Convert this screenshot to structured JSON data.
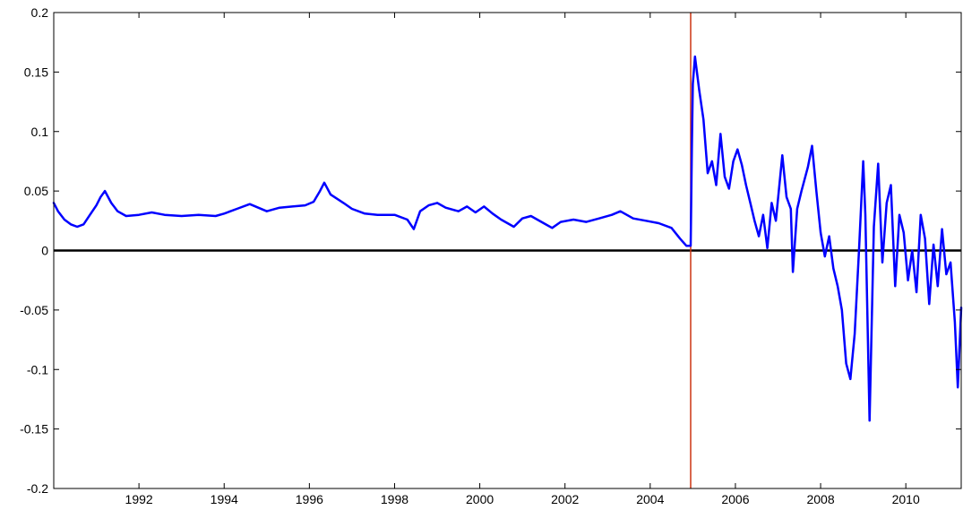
{
  "chart_data": {
    "type": "line",
    "title": "",
    "xlabel": "",
    "ylabel": "",
    "xlim": [
      1990.0,
      2011.3
    ],
    "ylim": [
      -0.2,
      0.2
    ],
    "xticks": [
      1992,
      1994,
      1996,
      1998,
      2000,
      2002,
      2004,
      2006,
      2008,
      2010
    ],
    "xtick_labels": [
      "1992",
      "1994",
      "1996",
      "1998",
      "2000",
      "2002",
      "2004",
      "2006",
      "2008",
      "2010"
    ],
    "yticks": [
      -0.2,
      -0.15,
      -0.1,
      -0.05,
      0,
      0.05,
      0.1,
      0.15,
      0.2
    ],
    "ytick_labels": [
      "-0.2",
      "-0.15",
      "-0.1",
      "-0.05",
      "0",
      "0.05",
      "0.1",
      "0.15",
      "0.2"
    ],
    "grid": false,
    "zero_line": {
      "y": 0,
      "color": "#000000"
    },
    "vertical_line": {
      "x": 2004.95,
      "color": "#cc3311"
    },
    "series": [
      {
        "color": "#0000ff",
        "points": [
          [
            1990.0,
            0.04
          ],
          [
            1990.1,
            0.033
          ],
          [
            1990.25,
            0.026
          ],
          [
            1990.4,
            0.022
          ],
          [
            1990.55,
            0.02
          ],
          [
            1990.7,
            0.022
          ],
          [
            1990.85,
            0.03
          ],
          [
            1991.0,
            0.038
          ],
          [
            1991.1,
            0.045
          ],
          [
            1991.2,
            0.05
          ],
          [
            1991.35,
            0.04
          ],
          [
            1991.5,
            0.033
          ],
          [
            1991.7,
            0.029
          ],
          [
            1992.0,
            0.03
          ],
          [
            1992.3,
            0.032
          ],
          [
            1992.6,
            0.03
          ],
          [
            1993.0,
            0.029
          ],
          [
            1993.4,
            0.03
          ],
          [
            1993.8,
            0.029
          ],
          [
            1994.0,
            0.031
          ],
          [
            1994.3,
            0.035
          ],
          [
            1994.6,
            0.039
          ],
          [
            1994.8,
            0.036
          ],
          [
            1995.0,
            0.033
          ],
          [
            1995.3,
            0.036
          ],
          [
            1995.6,
            0.037
          ],
          [
            1995.9,
            0.038
          ],
          [
            1996.1,
            0.041
          ],
          [
            1996.25,
            0.05
          ],
          [
            1996.35,
            0.057
          ],
          [
            1996.5,
            0.047
          ],
          [
            1996.8,
            0.04
          ],
          [
            1997.0,
            0.035
          ],
          [
            1997.3,
            0.031
          ],
          [
            1997.6,
            0.03
          ],
          [
            1998.0,
            0.03
          ],
          [
            1998.3,
            0.026
          ],
          [
            1998.45,
            0.018
          ],
          [
            1998.6,
            0.033
          ],
          [
            1998.8,
            0.038
          ],
          [
            1999.0,
            0.04
          ],
          [
            1999.2,
            0.036
          ],
          [
            1999.5,
            0.033
          ],
          [
            1999.7,
            0.037
          ],
          [
            1999.9,
            0.032
          ],
          [
            2000.1,
            0.037
          ],
          [
            2000.3,
            0.031
          ],
          [
            2000.5,
            0.026
          ],
          [
            2000.8,
            0.02
          ],
          [
            2001.0,
            0.027
          ],
          [
            2001.2,
            0.029
          ],
          [
            2001.5,
            0.023
          ],
          [
            2001.7,
            0.019
          ],
          [
            2001.9,
            0.024
          ],
          [
            2002.2,
            0.026
          ],
          [
            2002.5,
            0.024
          ],
          [
            2002.8,
            0.027
          ],
          [
            2003.1,
            0.03
          ],
          [
            2003.3,
            0.033
          ],
          [
            2003.6,
            0.027
          ],
          [
            2003.9,
            0.025
          ],
          [
            2004.2,
            0.023
          ],
          [
            2004.5,
            0.019
          ],
          [
            2004.7,
            0.01
          ],
          [
            2004.85,
            0.004
          ],
          [
            2004.95,
            0.004
          ],
          [
            2004.98,
            0.09
          ],
          [
            2005.0,
            0.14
          ],
          [
            2005.05,
            0.163
          ],
          [
            2005.15,
            0.135
          ],
          [
            2005.25,
            0.11
          ],
          [
            2005.35,
            0.065
          ],
          [
            2005.45,
            0.075
          ],
          [
            2005.55,
            0.055
          ],
          [
            2005.65,
            0.098
          ],
          [
            2005.75,
            0.062
          ],
          [
            2005.85,
            0.052
          ],
          [
            2005.95,
            0.075
          ],
          [
            2006.05,
            0.085
          ],
          [
            2006.15,
            0.072
          ],
          [
            2006.25,
            0.055
          ],
          [
            2006.35,
            0.04
          ],
          [
            2006.45,
            0.025
          ],
          [
            2006.55,
            0.012
          ],
          [
            2006.65,
            0.03
          ],
          [
            2006.75,
            0.002
          ],
          [
            2006.85,
            0.04
          ],
          [
            2006.95,
            0.025
          ],
          [
            2007.1,
            0.08
          ],
          [
            2007.2,
            0.045
          ],
          [
            2007.3,
            0.035
          ],
          [
            2007.35,
            -0.018
          ],
          [
            2007.45,
            0.035
          ],
          [
            2007.55,
            0.05
          ],
          [
            2007.7,
            0.07
          ],
          [
            2007.8,
            0.088
          ],
          [
            2007.9,
            0.05
          ],
          [
            2008.0,
            0.015
          ],
          [
            2008.1,
            -0.005
          ],
          [
            2008.2,
            0.012
          ],
          [
            2008.3,
            -0.015
          ],
          [
            2008.4,
            -0.03
          ],
          [
            2008.5,
            -0.05
          ],
          [
            2008.6,
            -0.095
          ],
          [
            2008.7,
            -0.108
          ],
          [
            2008.8,
            -0.07
          ],
          [
            2008.9,
            0.0
          ],
          [
            2009.0,
            0.075
          ],
          [
            2009.05,
            0.03
          ],
          [
            2009.15,
            -0.143
          ],
          [
            2009.25,
            0.02
          ],
          [
            2009.35,
            0.073
          ],
          [
            2009.45,
            -0.01
          ],
          [
            2009.55,
            0.04
          ],
          [
            2009.65,
            0.055
          ],
          [
            2009.75,
            -0.03
          ],
          [
            2009.85,
            0.03
          ],
          [
            2009.95,
            0.015
          ],
          [
            2010.05,
            -0.025
          ],
          [
            2010.15,
            0.0
          ],
          [
            2010.25,
            -0.035
          ],
          [
            2010.35,
            0.03
          ],
          [
            2010.45,
            0.01
          ],
          [
            2010.55,
            -0.045
          ],
          [
            2010.65,
            0.005
          ],
          [
            2010.75,
            -0.03
          ],
          [
            2010.85,
            0.018
          ],
          [
            2010.95,
            -0.02
          ],
          [
            2011.05,
            -0.01
          ],
          [
            2011.15,
            -0.06
          ],
          [
            2011.22,
            -0.115
          ],
          [
            2011.3,
            -0.048
          ]
        ]
      }
    ]
  }
}
